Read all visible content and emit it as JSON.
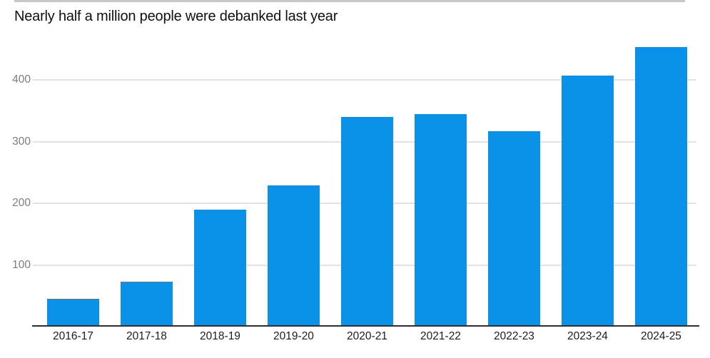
{
  "page": {
    "title": "Nearly half a million people were debanked last year"
  },
  "chart_data": {
    "type": "bar",
    "title": "Nearly half a million people were debanked last year",
    "categories": [
      "2016-17",
      "2017-18",
      "2018-19",
      "2019-20",
      "2020-21",
      "2021-22",
      "2022-23",
      "2023-24",
      "2024-25"
    ],
    "values": [
      45,
      73,
      190,
      229,
      340,
      344,
      317,
      407,
      453
    ],
    "xlabel": "",
    "ylabel": "",
    "yticks": [
      100,
      200,
      300,
      400
    ],
    "ylim": [
      0,
      470
    ],
    "grid": true,
    "legend": false,
    "colors": {
      "bar": "#0a91e8",
      "gridline": "#e2e2e2",
      "axis_line": "#2f2f2f",
      "y_tick_label": "#7d7d7d",
      "x_tick_label": "#1c1c1c",
      "title": "#101010",
      "top_rule": "#c6c6c6",
      "background": "#ffffff"
    }
  }
}
